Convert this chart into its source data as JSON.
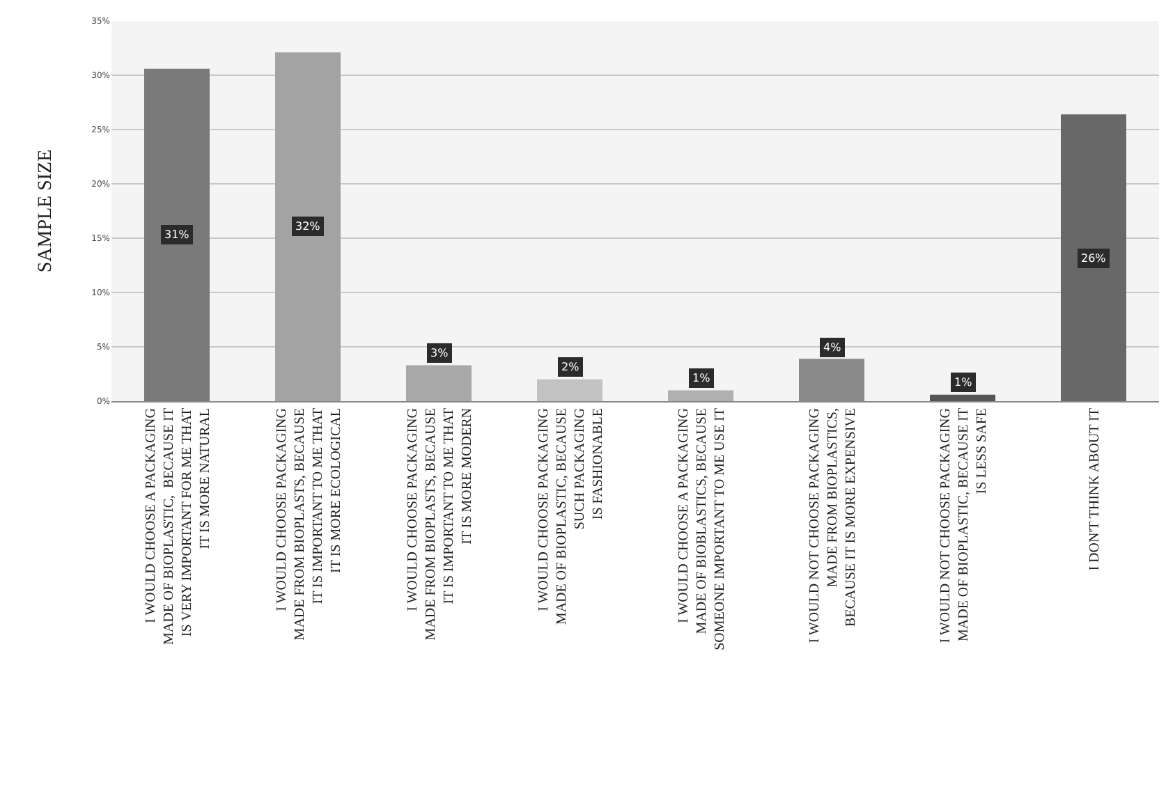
{
  "chart_data": {
    "type": "bar",
    "ylabel": "SAMPLE SIZE",
    "categories": [
      "I WOULD CHOOSE A PACKAGING\nMADE OF BIOPLASTIC,  BECAUSE IT\nIS VERY IMPORTANT FOR ME THAT\nIT IS MORE NATURAL",
      "I WOULD CHOOSE PACKAGING\nMADE FROM BIOPLASTS, BECAUSE\nIT IS IMPORTANT TO ME THAT\nIT IS MORE ECOLOGICAL",
      "I WOULD CHOOSE PACKAGING\nMADE FROM BIOPLASTS, BECAUSE\nIT IS IMPORTANT TO ME THAT\nIT IS MORE MODERN",
      "I WOULD CHOOSE PACKAGING\nMADE OF BIOPLASTIC, BECAUSE\nSUCH PACKAGING\nIS FASHIONABLE",
      "I WOULD CHOOSE A PACKAGING\nMADE OF BIOBLASTICS, BECAUSE\nSOMEONE IMPORTANT TO ME USE IT",
      "I WOULD NOT CHOOSE PACKAGING\nMADE FROM BIOPLASTICS,\nBECAUSE IT IS MORE EXPENSIVE",
      "I WOULD NOT CHOOSE PACKAGING\nMADE OF BIOPLASTIC, BECAUSE IT\nIS LESS SAFE",
      "I DON'T THINK ABOUT IT"
    ],
    "values": [
      30.6,
      32.1,
      3.3,
      2.0,
      1.0,
      3.9,
      0.6,
      26.4
    ],
    "value_labels": [
      "31%",
      "32%",
      "3%",
      "2%",
      "1%",
      "4%",
      "1%",
      "26%"
    ],
    "colors": [
      "#7a7a7a",
      "#a3a3a3",
      "#a8a8a8",
      "#c2c2c2",
      "#b0b0b0",
      "#8a8a8a",
      "#555555",
      "#686868"
    ],
    "ylim": [
      0,
      35
    ],
    "yticks": [
      {
        "value": 0,
        "label": "0%"
      },
      {
        "value": 5,
        "label": "5%"
      },
      {
        "value": 10,
        "label": "10%"
      },
      {
        "value": 15,
        "label": "15%"
      },
      {
        "value": 20,
        "label": "20%"
      },
      {
        "value": 25,
        "label": "25%"
      },
      {
        "value": 30,
        "label": "30%"
      },
      {
        "value": 35,
        "label": "35%"
      }
    ],
    "grid": "y"
  }
}
